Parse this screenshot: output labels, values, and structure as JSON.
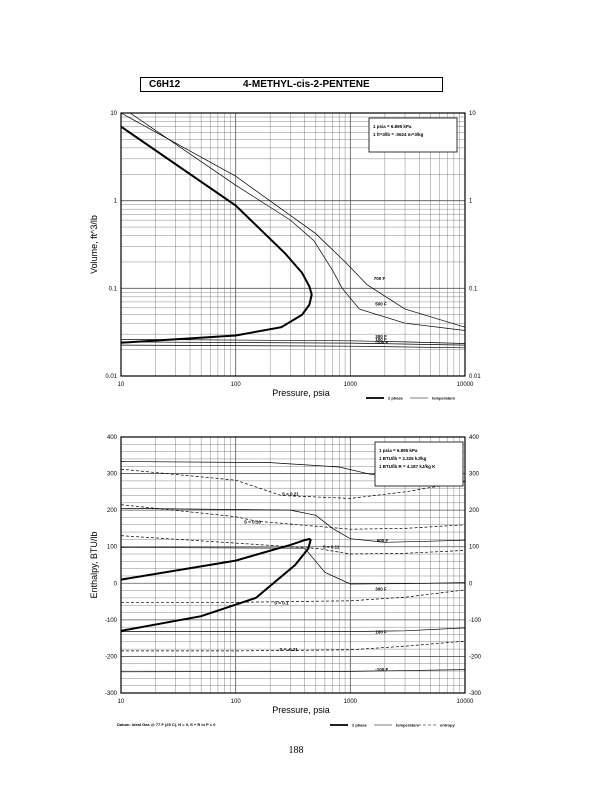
{
  "header": {
    "formula": "C6H12",
    "name": "4-METHYL-cis-2-PENTENE"
  },
  "page_number": "188",
  "chart_data": [
    {
      "type": "line",
      "xlabel": "Pressure,  psia",
      "ylabel": "Volume, ft^3/lb",
      "xscale": "log",
      "yscale": "log",
      "xlim": [
        10,
        10000
      ],
      "ylim": [
        0.01,
        10
      ],
      "x_ticks": [
        "10",
        "100",
        "1000",
        "10000"
      ],
      "y_ticks": [
        "0.01",
        "0.1",
        "1",
        "10"
      ],
      "grid": true,
      "info_box": [
        "1 psia  =  6.895 kPa",
        "1 ft^3/lb  =  .0624 m^3/kg"
      ],
      "legend": [
        "2 phase",
        "temperature"
      ],
      "two_phase": [
        {
          "x": 10,
          "y": 7
        },
        {
          "x": 100,
          "y": 0.88
        },
        {
          "x": 270,
          "y": 0.25
        },
        {
          "x": 380,
          "y": 0.15
        },
        {
          "x": 440,
          "y": 0.105
        },
        {
          "x": 460,
          "y": 0.085
        },
        {
          "x": 440,
          "y": 0.065
        },
        {
          "x": 380,
          "y": 0.05
        },
        {
          "x": 250,
          "y": 0.036
        },
        {
          "x": 100,
          "y": 0.029
        },
        {
          "x": 10,
          "y": 0.024
        }
      ],
      "series": [
        {
          "name": "700 F",
          "points": [
            [
              10,
              10
            ],
            [
              100,
              1.9
            ],
            [
              500,
              0.42
            ],
            [
              900,
              0.2
            ],
            [
              1400,
              0.11
            ],
            [
              3000,
              0.058
            ],
            [
              10000,
              0.036
            ]
          ]
        },
        {
          "name": "500 F",
          "points": [
            [
              12,
              10
            ],
            [
              100,
              1.5
            ],
            [
              300,
              0.6
            ],
            [
              480,
              0.35
            ],
            [
              700,
              0.16
            ],
            [
              850,
              0.1
            ],
            [
              1200,
              0.058
            ],
            [
              3000,
              0.04
            ],
            [
              10000,
              0.033
            ]
          ]
        },
        {
          "name": "300 F",
          "points": [
            [
              10,
              0.0262
            ],
            [
              1000,
              0.0252
            ],
            [
              3000,
              0.0245
            ],
            [
              10000,
              0.0235
            ]
          ]
        },
        {
          "name": "100 F",
          "points": [
            [
              10,
              0.0245
            ],
            [
              1000,
              0.0237
            ],
            [
              10000,
              0.0225
            ]
          ]
        },
        {
          "name": "-100 F",
          "points": [
            [
              10,
              0.0225
            ],
            [
              1000,
              0.0219
            ],
            [
              10000,
              0.021
            ]
          ]
        }
      ]
    },
    {
      "type": "line",
      "xlabel": "Pressure,  psia",
      "ylabel": "Enthalpy, BTU/lb",
      "xscale": "log",
      "yscale": "linear",
      "xlim": [
        10,
        10000
      ],
      "ylim": [
        -300,
        400
      ],
      "x_ticks": [
        "10",
        "100",
        "1000",
        "10000"
      ],
      "y_ticks": [
        "-300",
        "-200",
        "-100",
        "0",
        "100",
        "200",
        "300",
        "400"
      ],
      "grid": true,
      "info_box": [
        "1 psia  =  6.895 kPa",
        "1 BTU/lb  =  2.326 kJ/kg",
        "1 BTU/lb R  =  4.187 kJ/kg K"
      ],
      "legend": [
        "2 phase",
        "temperature",
        "entropy"
      ],
      "footnote": "Datum: Ideal Gas @ 77 F (25 C),  H = 0,  S + R ln P = 0",
      "two_phase": [
        {
          "x": 10,
          "y": 10
        },
        {
          "x": 100,
          "y": 62
        },
        {
          "x": 300,
          "y": 105
        },
        {
          "x": 400,
          "y": 118
        },
        {
          "x": 440,
          "y": 121
        },
        {
          "x": 450,
          "y": 118
        },
        {
          "x": 430,
          "y": 95
        },
        {
          "x": 330,
          "y": 50
        },
        {
          "x": 150,
          "y": -40
        },
        {
          "x": 50,
          "y": -90
        },
        {
          "x": 10,
          "y": -130
        }
      ],
      "series": [
        {
          "name": "700 F",
          "points": [
            [
              10,
              333
            ],
            [
              200,
              330
            ],
            [
              800,
              318
            ],
            [
              1500,
              298
            ],
            [
              3000,
              288
            ],
            [
              10000,
              278
            ]
          ]
        },
        {
          "name": "500 F",
          "points": [
            [
              10,
              205
            ],
            [
              300,
              200
            ],
            [
              500,
              186
            ],
            [
              700,
              150
            ],
            [
              1000,
              122
            ],
            [
              2000,
              112
            ],
            [
              5000,
              115
            ],
            [
              10000,
              118
            ]
          ]
        },
        {
          "name": "300 F",
          "points": [
            [
              10,
              98
            ],
            [
              400,
              96
            ],
            [
              600,
              30
            ],
            [
              1000,
              -2
            ],
            [
              3000,
              -1
            ],
            [
              10000,
              2
            ]
          ]
        },
        {
          "name": "100 F",
          "points": [
            [
              10,
              -132
            ],
            [
              1000,
              -132
            ],
            [
              3000,
              -130
            ],
            [
              10000,
              -122
            ]
          ]
        },
        {
          "name": "-100 F",
          "points": [
            [
              10,
              -242
            ],
            [
              1000,
              -241
            ],
            [
              10000,
              -236
            ]
          ]
        }
      ],
      "entropy_series": [
        {
          "name": "S = 0.21",
          "points": [
            [
              10,
              312
            ],
            [
              100,
              282
            ],
            [
              250,
              240
            ],
            [
              1000,
              232
            ],
            [
              3000,
              250
            ],
            [
              10000,
              278
            ]
          ]
        },
        {
          "name": "S = 0.16",
          "points": [
            [
              10,
              215
            ],
            [
              100,
              182
            ],
            [
              150,
              170
            ],
            [
              1000,
              148
            ],
            [
              3000,
              150
            ],
            [
              10000,
              160
            ]
          ]
        },
        {
          "name": "S = 0.11",
          "points": [
            [
              10,
              130
            ],
            [
              100,
              110
            ],
            [
              520,
              95
            ],
            [
              1000,
              80
            ],
            [
              3000,
              82
            ],
            [
              10000,
              90
            ]
          ]
        },
        {
          "name": "S = 0.1",
          "points": [
            [
              10,
              -52
            ],
            [
              100,
              -52
            ],
            [
              1000,
              -48
            ],
            [
              3000,
              -38
            ],
            [
              10000,
              -18
            ]
          ]
        },
        {
          "name": "S = -0.21",
          "points": [
            [
              10,
              -185
            ],
            [
              100,
              -185
            ],
            [
              1000,
              -182
            ],
            [
              3000,
              -172
            ],
            [
              10000,
              -158
            ]
          ]
        }
      ]
    }
  ]
}
